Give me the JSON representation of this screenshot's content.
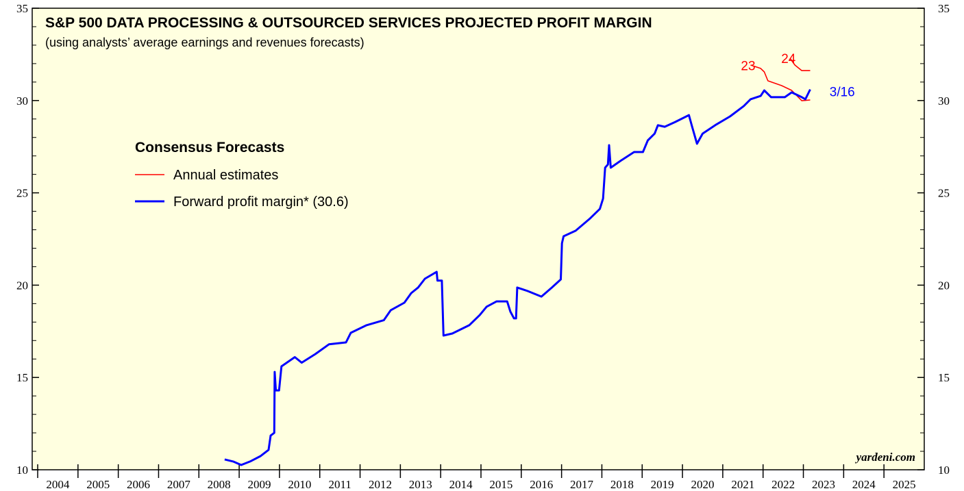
{
  "chart_data": {
    "type": "line",
    "title": "S&P 500  DATA PROCESSING & OUTSOURCED SERVICES PROJECTED PROFIT MARGIN",
    "subtitle": "(using analysts’ average earnings and revenues forecasts)",
    "legend_title": "Consensus Forecasts",
    "source": "yardeni.com",
    "series": [
      {
        "name": "Annual estimates",
        "color": "#ff0000",
        "x": [
          2021.69,
          2021.94,
          2022.03,
          2022.12,
          2022.46,
          2022.71,
          2022.96,
          2023.17
        ],
        "values": [
          31.92,
          31.74,
          31.55,
          31.07,
          30.81,
          30.55,
          29.99,
          30.03
        ]
      },
      {
        "name": "Annual estimates",
        "color": "#ff0000",
        "x": [
          2022.67,
          2022.79,
          2022.96,
          2023.17
        ],
        "values": [
          32.29,
          31.92,
          31.62,
          31.62
        ]
      },
      {
        "name": "Forward profit margin* (30.6)",
        "color": "#0000ff",
        "x": [
          2008.64,
          2008.85,
          2009.05,
          2009.27,
          2009.53,
          2009.73,
          2009.78,
          2009.87,
          2009.88,
          2009.91,
          2009.99,
          2010.05,
          2010.38,
          2010.55,
          2010.89,
          2011.23,
          2011.65,
          2011.77,
          2012.16,
          2012.59,
          2012.76,
          2013.1,
          2013.27,
          2013.44,
          2013.61,
          2013.9,
          2013.92,
          2014.03,
          2014.07,
          2014.29,
          2014.71,
          2014.97,
          2015.14,
          2015.39,
          2015.65,
          2015.73,
          2015.82,
          2015.87,
          2015.9,
          2016.16,
          2016.5,
          2016.76,
          2016.98,
          2017.01,
          2017.05,
          2017.35,
          2017.69,
          2017.95,
          2018.03,
          2018.08,
          2018.15,
          2018.18,
          2018.22,
          2018.46,
          2018.8,
          2019.02,
          2019.14,
          2019.31,
          2019.39,
          2019.56,
          2019.82,
          2020.16,
          2020.24,
          2020.36,
          2020.5,
          2020.84,
          2021.18,
          2021.52,
          2021.69,
          2021.94,
          2022.03,
          2022.2,
          2022.54,
          2022.71,
          2022.96,
          2023.05,
          2023.17
        ],
        "values": [
          10.56,
          10.45,
          10.26,
          10.45,
          10.74,
          11.08,
          11.85,
          12.0,
          15.3,
          14.3,
          14.3,
          15.6,
          16.1,
          15.8,
          16.27,
          16.8,
          16.9,
          17.42,
          17.83,
          18.1,
          18.64,
          19.05,
          19.57,
          19.87,
          20.35,
          20.72,
          20.25,
          20.25,
          17.27,
          17.38,
          17.83,
          18.38,
          18.83,
          19.12,
          19.12,
          18.57,
          18.2,
          18.2,
          19.87,
          19.68,
          19.38,
          19.87,
          20.31,
          22.27,
          22.65,
          22.95,
          23.58,
          24.13,
          24.69,
          26.36,
          26.54,
          27.58,
          26.36,
          26.73,
          27.21,
          27.21,
          27.84,
          28.21,
          28.66,
          28.58,
          28.84,
          29.21,
          28.58,
          27.66,
          28.21,
          28.7,
          29.14,
          29.7,
          30.07,
          30.25,
          30.55,
          30.18,
          30.18,
          30.44,
          30.18,
          30.07,
          30.6
        ]
      }
    ],
    "annotations": [
      {
        "text": "23",
        "x": 2021.45,
        "y": 31.9,
        "color": "#ff0000"
      },
      {
        "text": "24",
        "x": 2022.45,
        "y": 32.3,
        "color": "#ff0000"
      },
      {
        "text": "3/16",
        "x": 2023.65,
        "y": 30.5,
        "color": "#0000ff"
      }
    ],
    "xlim": [
      2004,
      2026
    ],
    "xticks": [
      2004,
      2005,
      2006,
      2007,
      2008,
      2009,
      2010,
      2011,
      2012,
      2013,
      2014,
      2015,
      2016,
      2017,
      2018,
      2019,
      2020,
      2021,
      2022,
      2023,
      2024,
      2025
    ],
    "ylim": [
      10,
      35
    ],
    "yticks": [
      10,
      15,
      20,
      25,
      30,
      35
    ]
  }
}
